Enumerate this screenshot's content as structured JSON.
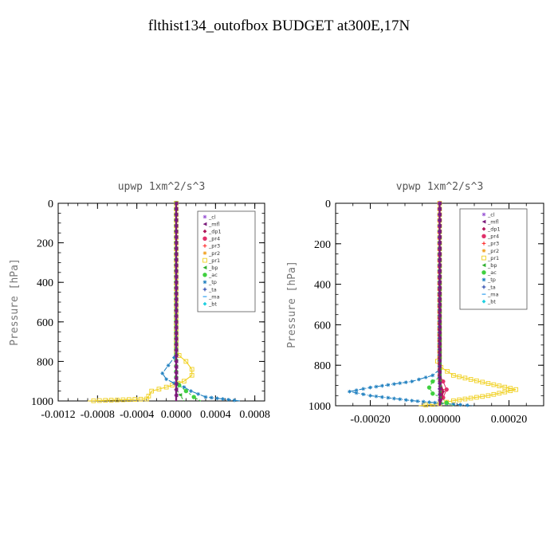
{
  "title": "flthist134_outofbox  BUDGET at300E,17N",
  "legend": [
    {
      "label": "_cl",
      "color": "#9b59d6",
      "marker": "star"
    },
    {
      "label": "_mfl",
      "color": "#7a1a7a",
      "marker": "tri-left"
    },
    {
      "label": "_dp1",
      "color": "#b0185a",
      "marker": "diamond"
    },
    {
      "label": "_pr4",
      "color": "#e0306a",
      "marker": "circle"
    },
    {
      "label": "_pr3",
      "color": "#ff2020",
      "marker": "plus"
    },
    {
      "label": "_pr2",
      "color": "#f0a020",
      "marker": "star"
    },
    {
      "label": "_pr1",
      "color": "#f0d020",
      "marker": "square"
    },
    {
      "label": "_bp",
      "color": "#30b030",
      "marker": "tri-left"
    },
    {
      "label": "_ac",
      "color": "#40d040",
      "marker": "circle"
    },
    {
      "label": "_tp",
      "color": "#2080c0",
      "marker": "star"
    },
    {
      "label": "_ta",
      "color": "#1030a0",
      "marker": "plus"
    },
    {
      "label": "_ma",
      "color": "#30a0f0",
      "marker": "dash"
    },
    {
      "label": "_bt",
      "color": "#20d0e0",
      "marker": "diamond"
    }
  ],
  "chart_data": [
    {
      "type": "line",
      "title": "upwp  1xm^2/s^3",
      "ylabel": "Pressure [hPa]",
      "xlim": [
        -0.0012,
        0.0009
      ],
      "ylim": [
        1000,
        0
      ],
      "xticks": [
        -0.0012,
        -0.0008,
        -0.0004,
        0.0,
        0.0004,
        0.0008
      ],
      "xtick_labels": [
        "-0.0012",
        "-0.0008",
        "-0.0004",
        "0.0000",
        "0.0004",
        "0.0008"
      ],
      "yticks": [
        0,
        200,
        400,
        600,
        800,
        1000
      ],
      "ytick_labels": [
        "0",
        "200",
        "400",
        "600",
        "800",
        "1000"
      ],
      "legend_position": "top-right",
      "series": [
        {
          "name": "_pr1",
          "points": [
            [
              0,
              0
            ],
            [
              0,
              750
            ],
            [
              3e-05,
              770
            ],
            [
              0.0001,
              800
            ],
            [
              0.00016,
              840
            ],
            [
              0.00016,
              870
            ],
            [
              8e-05,
              900
            ],
            [
              -0.0001,
              930
            ],
            [
              -0.00025,
              950
            ],
            [
              -0.00028,
              975
            ],
            [
              -0.0003,
              990
            ],
            [
              -0.0009,
              1000
            ]
          ]
        },
        {
          "name": "_tp",
          "points": [
            [
              0,
              0
            ],
            [
              0,
              750
            ],
            [
              -2e-05,
              780
            ],
            [
              -8e-05,
              820
            ],
            [
              -0.00014,
              860
            ],
            [
              -0.0001,
              890
            ],
            [
              -2e-05,
              910
            ],
            [
              8e-05,
              930
            ],
            [
              0.00015,
              950
            ],
            [
              0.0003,
              980
            ],
            [
              0.00065,
              1000
            ]
          ]
        },
        {
          "name": "_ac",
          "points": [
            [
              0,
              0
            ],
            [
              0,
              880
            ],
            [
              3e-05,
              920
            ],
            [
              0.0001,
              950
            ],
            [
              0.00018,
              980
            ],
            [
              0.00025,
              1000
            ]
          ]
        },
        {
          "name": "_bp",
          "points": [
            [
              0,
              0
            ],
            [
              0,
              940
            ],
            [
              4e-05,
              970
            ],
            [
              8e-05,
              1000
            ]
          ]
        },
        {
          "name": "_ma",
          "points": [
            [
              0,
              0
            ],
            [
              0,
              1000
            ]
          ]
        },
        {
          "name": "_ta",
          "points": [
            [
              0,
              0
            ],
            [
              0,
              1000
            ]
          ]
        },
        {
          "name": "_cl",
          "points": [
            [
              0,
              0
            ],
            [
              0,
              1000
            ]
          ]
        },
        {
          "name": "_dp1",
          "points": [
            [
              0,
              0
            ],
            [
              0,
              1000
            ]
          ]
        },
        {
          "name": "_mfl",
          "points": [
            [
              0,
              0
            ],
            [
              0,
              1000
            ]
          ]
        }
      ]
    },
    {
      "type": "line",
      "title": "vpwp  1xm^2/s^3",
      "ylabel": "Pressure [hPa]",
      "xlim": [
        -0.0003,
        0.0003
      ],
      "ylim": [
        1000,
        0
      ],
      "xticks": [
        -0.0002,
        0.0,
        0.0002
      ],
      "xtick_labels": [
        "-0.00020",
        "0.000000",
        "0.00020"
      ],
      "yticks": [
        0,
        200,
        400,
        600,
        800,
        1000
      ],
      "ytick_labels": [
        "0",
        "200",
        "400",
        "600",
        "800",
        "1000"
      ],
      "legend_position": "top-right",
      "series": [
        {
          "name": "_pr1",
          "points": [
            [
              0,
              0
            ],
            [
              0,
              760
            ],
            [
              -6e-06,
              780
            ],
            [
              4e-06,
              810
            ],
            [
              4e-05,
              850
            ],
            [
              0.00014,
              890
            ],
            [
              0.00022,
              920
            ],
            [
              0.00014,
              950
            ],
            [
              4e-05,
              975
            ],
            [
              0,
              990
            ],
            [
              -6e-05,
              1000
            ]
          ]
        },
        {
          "name": "_tp",
          "points": [
            [
              0,
              0
            ],
            [
              0,
              820
            ],
            [
              -2e-05,
              850
            ],
            [
              -8e-05,
              880
            ],
            [
              -0.0002,
              910
            ],
            [
              -0.00026,
              930
            ],
            [
              -0.0002,
              950
            ],
            [
              -8e-05,
              975
            ],
            [
              2e-05,
              990
            ],
            [
              0.0001,
              1000
            ]
          ]
        },
        {
          "name": "_ac",
          "points": [
            [
              0,
              0
            ],
            [
              0,
              860
            ],
            [
              -2e-05,
              880
            ],
            [
              -3e-05,
              910
            ],
            [
              -2e-05,
              940
            ],
            [
              5e-06,
              960
            ],
            [
              2e-05,
              985
            ],
            [
              4e-05,
              1000
            ]
          ]
        },
        {
          "name": "_pr4",
          "points": [
            [
              0,
              0
            ],
            [
              0,
              850
            ],
            [
              1e-05,
              880
            ],
            [
              2e-05,
              920
            ],
            [
              1e-05,
              960
            ],
            [
              0,
              1000
            ]
          ]
        },
        {
          "name": "_pr3",
          "points": [
            [
              0,
              0
            ],
            [
              0,
              870
            ],
            [
              8e-06,
              920
            ],
            [
              0,
              1000
            ]
          ]
        },
        {
          "name": "_dp1",
          "points": [
            [
              0,
              0
            ],
            [
              0,
              880
            ],
            [
              1e-05,
              930
            ],
            [
              0,
              1000
            ]
          ]
        },
        {
          "name": "_bp",
          "points": [
            [
              0,
              0
            ],
            [
              0,
              960
            ],
            [
              1e-05,
              1000
            ]
          ]
        },
        {
          "name": "_ma",
          "points": [
            [
              0,
              0
            ],
            [
              0,
              1000
            ]
          ]
        },
        {
          "name": "_ta",
          "points": [
            [
              0,
              0
            ],
            [
              0,
              1000
            ]
          ]
        },
        {
          "name": "_cl",
          "points": [
            [
              0,
              0
            ],
            [
              0,
              1000
            ]
          ]
        },
        {
          "name": "_mfl",
          "points": [
            [
              0,
              0
            ],
            [
              0,
              1000
            ]
          ]
        }
      ]
    }
  ]
}
